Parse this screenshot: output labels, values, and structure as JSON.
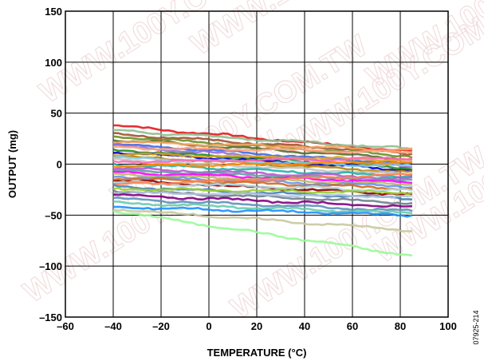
{
  "chart_data": {
    "type": "line",
    "title": "",
    "xlabel": "TEMPERATURE (°C)",
    "ylabel": "OUTPUT (mg)",
    "xlim": [
      -60,
      100
    ],
    "ylim": [
      -150,
      150
    ],
    "xticks": [
      -60,
      -40,
      -20,
      0,
      20,
      40,
      60,
      80,
      100
    ],
    "yticks": [
      -150,
      -100,
      -50,
      0,
      50,
      100,
      150
    ],
    "xtick_labels": [
      "–60",
      "–40",
      "–20",
      "0",
      "20",
      "40",
      "60",
      "80",
      "100"
    ],
    "ytick_labels": [
      "–150",
      "–100",
      "–50",
      "0",
      "50",
      "100",
      "150"
    ],
    "grid": true,
    "legend": "none",
    "figure_id": "07925-214",
    "watermark": "WWW.100Y.COM.TW",
    "series": [
      {
        "color": "#e31a1c",
        "x": [
          -40,
          85
        ],
        "y": [
          38,
          12
        ]
      },
      {
        "color": "#8fbc8f",
        "x": [
          -40,
          85
        ],
        "y": [
          33,
          15
        ]
      },
      {
        "color": "#a0522d",
        "x": [
          -40,
          85
        ],
        "y": [
          30,
          10
        ]
      },
      {
        "color": "#6b8e23",
        "x": [
          -40,
          85
        ],
        "y": [
          27,
          8
        ]
      },
      {
        "color": "#556b2f",
        "x": [
          -40,
          85
        ],
        "y": [
          24,
          5
        ]
      },
      {
        "color": "#f4a460",
        "x": [
          -40,
          85
        ],
        "y": [
          22,
          14
        ]
      },
      {
        "color": "#4169e1",
        "x": [
          -40,
          85
        ],
        "y": [
          20,
          0
        ]
      },
      {
        "color": "#9370db",
        "x": [
          -40,
          85
        ],
        "y": [
          18,
          -3
        ]
      },
      {
        "color": "#ffa07a",
        "x": [
          -40,
          85
        ],
        "y": [
          16,
          12
        ]
      },
      {
        "color": "#228b22",
        "x": [
          -40,
          85
        ],
        "y": [
          14,
          -4
        ]
      },
      {
        "color": "#0000cd",
        "x": [
          -40,
          85
        ],
        "y": [
          12,
          -6
        ]
      },
      {
        "color": "#daa520",
        "x": [
          -40,
          85
        ],
        "y": [
          10,
          4
        ]
      },
      {
        "color": "#b8860b",
        "x": [
          -40,
          85
        ],
        "y": [
          8,
          -8
        ]
      },
      {
        "color": "#87ceeb",
        "x": [
          -40,
          85
        ],
        "y": [
          6,
          -2
        ]
      },
      {
        "color": "#c0c0c0",
        "x": [
          -40,
          85
        ],
        "y": [
          4,
          -10
        ]
      },
      {
        "color": "#ff69b4",
        "x": [
          -40,
          85
        ],
        "y": [
          2,
          6
        ]
      },
      {
        "color": "#20b2aa",
        "x": [
          -40,
          85
        ],
        "y": [
          0,
          -12
        ]
      },
      {
        "color": "#ff8c00",
        "x": [
          -40,
          85
        ],
        "y": [
          -2,
          2
        ]
      },
      {
        "color": "#ba55d3",
        "x": [
          -40,
          85
        ],
        "y": [
          -4,
          -14
        ]
      },
      {
        "color": "#5f9ea0",
        "x": [
          -40,
          85
        ],
        "y": [
          -6,
          -16
        ]
      },
      {
        "color": "#ff00ff",
        "x": [
          -40,
          85
        ],
        "y": [
          -8,
          -18
        ]
      },
      {
        "color": "#bdb76b",
        "x": [
          -40,
          85
        ],
        "y": [
          -10,
          -20
        ]
      },
      {
        "color": "#6495ed",
        "x": [
          -40,
          85
        ],
        "y": [
          -12,
          -22
        ]
      },
      {
        "color": "#d2691e",
        "x": [
          -40,
          85
        ],
        "y": [
          -14,
          -24
        ]
      },
      {
        "color": "#8b0000",
        "x": [
          -40,
          85
        ],
        "y": [
          -16,
          -30
        ]
      },
      {
        "color": "#add8e6",
        "x": [
          -40,
          85
        ],
        "y": [
          -18,
          -26
        ]
      },
      {
        "color": "#ff7f50",
        "x": [
          -40,
          85
        ],
        "y": [
          -20,
          -10
        ]
      },
      {
        "color": "#4682b4",
        "x": [
          -40,
          85
        ],
        "y": [
          -22,
          -34
        ]
      },
      {
        "color": "#9acd32",
        "x": [
          -40,
          85
        ],
        "y": [
          -24,
          -28
        ]
      },
      {
        "color": "#708090",
        "x": [
          -40,
          85
        ],
        "y": [
          -26,
          -38
        ]
      },
      {
        "color": "#b0c4de",
        "x": [
          -40,
          85
        ],
        "y": [
          -28,
          -32
        ]
      },
      {
        "color": "#800080",
        "x": [
          -40,
          85
        ],
        "y": [
          -30,
          -42
        ]
      },
      {
        "color": "#5f8fbf",
        "x": [
          -40,
          85
        ],
        "y": [
          -34,
          -46
        ]
      },
      {
        "color": "#66cdaa",
        "x": [
          -40,
          85
        ],
        "y": [
          -38,
          -48
        ]
      },
      {
        "color": "#1e90ff",
        "x": [
          -40,
          85
        ],
        "y": [
          -42,
          -50
        ]
      },
      {
        "color": "#c8c8a0",
        "x": [
          -40,
          85
        ],
        "y": [
          -44,
          -65
        ]
      },
      {
        "color": "#98fb98",
        "x": [
          -40,
          85
        ],
        "y": [
          -46,
          -90
        ]
      }
    ]
  }
}
